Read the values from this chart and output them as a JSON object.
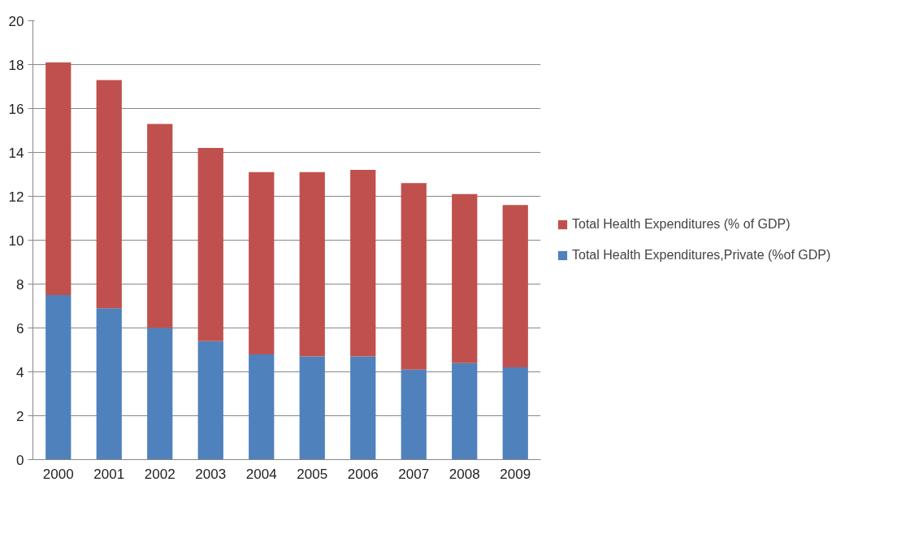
{
  "chart_data": {
    "type": "bar",
    "stacked": true,
    "categories": [
      "2000",
      "2001",
      "2002",
      "2003",
      "2004",
      "2005",
      "2006",
      "2007",
      "2008",
      "2009"
    ],
    "series": [
      {
        "name": "Total Health Expenditures,Private (%of GDP)",
        "color": "#4f81bd",
        "values": [
          7.5,
          6.9,
          6.0,
          5.4,
          4.8,
          4.7,
          4.7,
          4.1,
          4.4,
          4.2
        ]
      },
      {
        "name": "Total Health Expenditures (% of GDP)",
        "color": "#c0504d",
        "values": [
          10.6,
          10.4,
          9.3,
          8.8,
          8.3,
          8.4,
          8.5,
          8.5,
          7.7,
          7.4
        ]
      }
    ],
    "ylim": [
      0,
      20
    ],
    "yticks": [
      0,
      2,
      4,
      6,
      8,
      10,
      12,
      14,
      16,
      18,
      20
    ],
    "grid": "y",
    "legend": "right"
  }
}
